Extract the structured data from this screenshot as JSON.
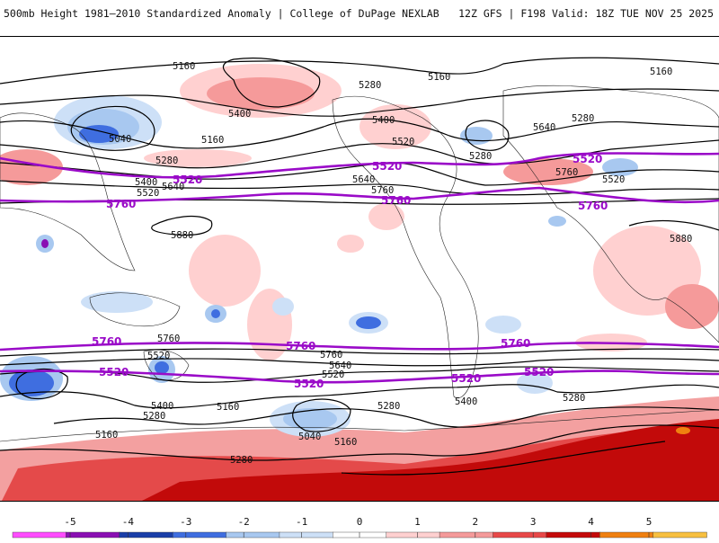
{
  "header": {
    "left_title": "500mb Height 1981–2010 Standardized Anomaly | College of DuPage NEXLAB",
    "right_title": "12Z GFS | F198 Valid: 18Z TUE NOV 25 2025"
  },
  "contour_labels": {
    "black": [
      "5160",
      "5160",
      "5160",
      "5280",
      "5400",
      "5040",
      "5160",
      "5280",
      "5400",
      "5520",
      "5400",
      "5280",
      "5520",
      "5280",
      "5640",
      "5640",
      "5760",
      "5880",
      "5880",
      "5760",
      "5640",
      "5520",
      "5760",
      "5520",
      "5400",
      "5280",
      "5160",
      "5040",
      "5160",
      "5280",
      "5160",
      "5280",
      "5760",
      "5640",
      "5520",
      "5280",
      "5400"
    ],
    "purple": [
      "5520",
      "5760",
      "5520",
      "5760",
      "5520",
      "5760",
      "5760",
      "5760",
      "5760",
      "5520",
      "5520",
      "5520",
      "5520"
    ]
  },
  "colorbar": {
    "ticks": [
      "-5",
      "-4",
      "-3",
      "-2",
      "-1",
      "0",
      "1",
      "2",
      "3",
      "4",
      "5"
    ],
    "colors": [
      "#ff4dff",
      "#8a0fb3",
      "#1a3ea8",
      "#3f6ee0",
      "#a8c8f0",
      "#cde0f7",
      "#ffffff",
      "#ffd0d0",
      "#f59a9a",
      "#e84848",
      "#c40a0a",
      "#f08010",
      "#f8c040"
    ]
  }
}
